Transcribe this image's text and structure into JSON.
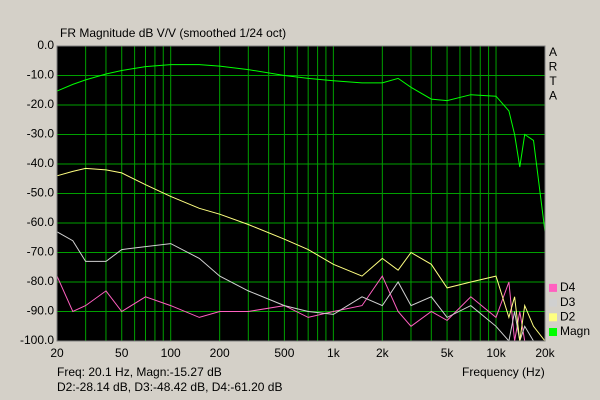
{
  "chart_data": {
    "type": "line",
    "title": "FR Magnitude dB V/V (smoothed 1/24 oct)",
    "side_label": [
      "A",
      "R",
      "T",
      "A"
    ],
    "x_label": "Frequency (Hz)",
    "readout": [
      "Freq: 20.1 Hz, Magn:-15.27 dB",
      "D2:-28.14 dB, D3:-48.42 dB, D4:-61.20 dB"
    ],
    "xlog": true,
    "grid": true,
    "grid_color": "#00a000",
    "plot_color": "#000000",
    "legend": "right-bottom",
    "xlim": [
      20,
      20000
    ],
    "ylim": [
      -100,
      0
    ],
    "xticks": [
      20,
      50,
      100,
      200,
      500,
      {
        "value": 1000,
        "label": "1k"
      },
      {
        "value": 2000,
        "label": "2k"
      },
      {
        "value": 5000,
        "label": "5k"
      },
      {
        "value": 10000,
        "label": "10k"
      },
      {
        "value": 20000,
        "label": "20k"
      }
    ],
    "xminor": [
      30,
      40,
      60,
      70,
      80,
      90,
      300,
      400,
      600,
      700,
      800,
      900,
      3000,
      4000,
      6000,
      7000,
      8000,
      9000
    ],
    "yticks": [
      {
        "value": 0,
        "label": "0.0"
      },
      {
        "value": -10,
        "label": "-10.0"
      },
      {
        "value": -20,
        "label": "-20.0"
      },
      {
        "value": -30,
        "label": "-30.0"
      },
      {
        "value": -40,
        "label": "-40.0"
      },
      {
        "value": -50,
        "label": "-50.0"
      },
      {
        "value": -60,
        "label": "-60.0"
      },
      {
        "value": -70,
        "label": "-70.0"
      },
      {
        "value": -80,
        "label": "-80.0"
      },
      {
        "value": -90,
        "label": "-90.0"
      },
      {
        "value": -100,
        "label": "-100.0"
      }
    ],
    "x": [
      20,
      25,
      30,
      40,
      50,
      70,
      100,
      150,
      200,
      300,
      500,
      700,
      1000,
      1500,
      2000,
      2500,
      3000,
      4000,
      5000,
      7000,
      10000,
      12000,
      13000,
      14000,
      15000,
      17000,
      20000
    ],
    "series": [
      {
        "name": "Magn",
        "color": "#00ff00",
        "values": [
          -15.3,
          -13,
          -11.5,
          -9.5,
          -8.3,
          -7,
          -6.3,
          -6.3,
          -6.8,
          -8,
          -10,
          -11,
          -11.8,
          -12.5,
          -12.5,
          -11,
          -14,
          -18,
          -18.5,
          -16.5,
          -17,
          -22,
          -30,
          -41,
          -30,
          -32,
          -63
        ]
      },
      {
        "name": "D2",
        "color": "#ffff80",
        "values": [
          -44,
          -42.5,
          -41.5,
          -42,
          -43,
          -47,
          -51,
          -55,
          -57,
          -60.5,
          -65.5,
          -69,
          -74,
          -78,
          -72,
          -76,
          -70,
          -74,
          -82,
          -80,
          -78,
          -92,
          -85,
          -100,
          -88,
          -95,
          -100
        ]
      },
      {
        "name": "D3",
        "color": "#d0d0d0",
        "values": [
          -63,
          -66,
          -73,
          -73,
          -69,
          -68,
          -67,
          -72,
          -78,
          -83,
          -88,
          -90,
          -91,
          -85,
          -88,
          -80,
          -88,
          -85,
          -92,
          -88,
          -95,
          -100,
          -90,
          -100,
          -95,
          -100,
          -100
        ]
      },
      {
        "name": "D4",
        "color": "#ff60c0",
        "values": [
          -78,
          -90,
          -88,
          -83,
          -90,
          -85,
          -88,
          -92,
          -90,
          -90,
          -88,
          -92,
          -90,
          -88,
          -78,
          -90,
          -95,
          -90,
          -93,
          -85,
          -92,
          -80,
          -100,
          -90,
          -100,
          -100,
          -100
        ]
      }
    ]
  }
}
